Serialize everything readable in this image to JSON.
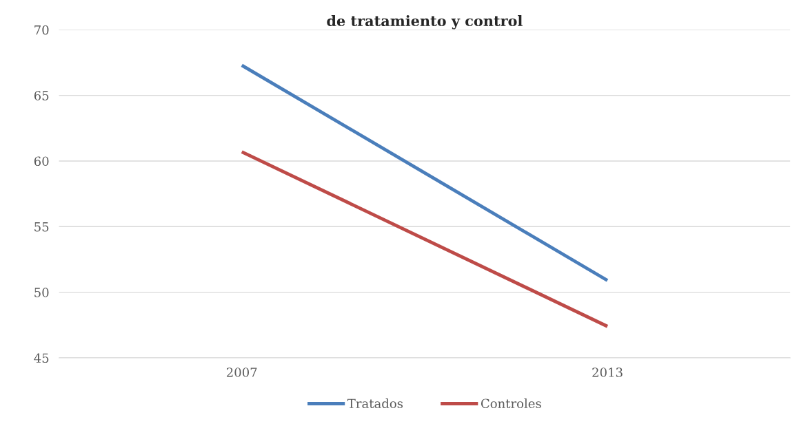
{
  "chart_data": {
    "type": "line",
    "title": "de tratamiento y control",
    "categories": [
      "2007",
      "2013"
    ],
    "series": [
      {
        "name": "Tratados",
        "color": "#4a7ebb",
        "values": [
          67.3,
          50.9
        ]
      },
      {
        "name": "Controles",
        "color": "#be4b48",
        "values": [
          60.7,
          47.4
        ]
      }
    ],
    "ylim": [
      45,
      70
    ],
    "yticks": [
      45,
      50,
      55,
      60,
      65,
      70
    ],
    "grid": "y",
    "legend": "bottom",
    "marker": "none",
    "line_style": "solid"
  }
}
